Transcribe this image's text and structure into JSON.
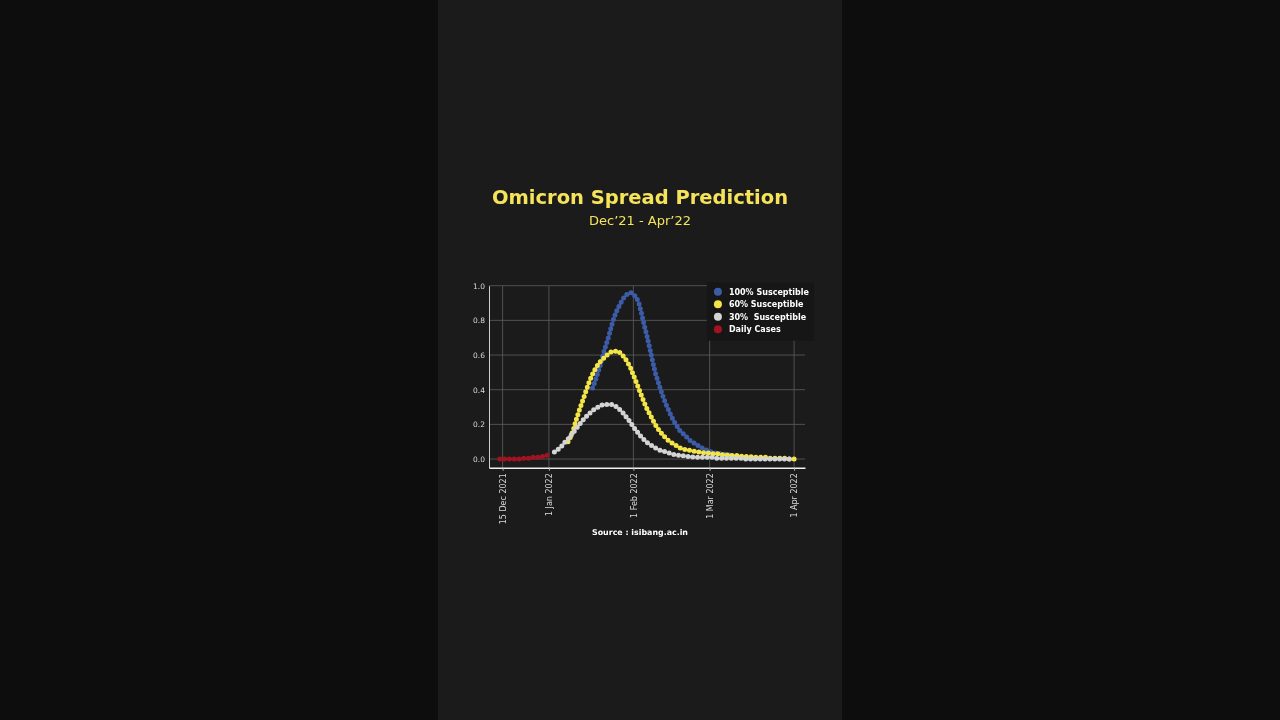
{
  "chart_data": {
    "type": "line",
    "title": "Omicron Spread Prediction",
    "subtitle": "Dec’21 - Apr’22",
    "annotations": [
      "Source : isibang.ac.in"
    ],
    "x": [
      "2021-12-14",
      "2021-12-15",
      "2021-12-16",
      "2021-12-17",
      "2021-12-18",
      "2021-12-19",
      "2021-12-20",
      "2021-12-21",
      "2021-12-22",
      "2021-12-23",
      "2021-12-24",
      "2021-12-25",
      "2021-12-26",
      "2021-12-27",
      "2021-12-28",
      "2021-12-29",
      "2021-12-30",
      "2021-12-31",
      "2022-01-01",
      "2022-01-02",
      "2022-01-03",
      "2022-01-04",
      "2022-01-05",
      "2022-01-06",
      "2022-01-07",
      "2022-01-08",
      "2022-01-09",
      "2022-01-10",
      "2022-01-11",
      "2022-01-12",
      "2022-01-13",
      "2022-01-14",
      "2022-01-15",
      "2022-01-16",
      "2022-01-17",
      "2022-01-18",
      "2022-01-19",
      "2022-01-20",
      "2022-01-21",
      "2022-01-22",
      "2022-01-23",
      "2022-01-24",
      "2022-01-25",
      "2022-01-26",
      "2022-01-27",
      "2022-01-28",
      "2022-01-29",
      "2022-01-30",
      "2022-01-31",
      "2022-02-01",
      "2022-02-02",
      "2022-02-03",
      "2022-02-04",
      "2022-02-05",
      "2022-02-06",
      "2022-02-07",
      "2022-02-08",
      "2022-02-09",
      "2022-02-10",
      "2022-02-11",
      "2022-02-12",
      "2022-02-13",
      "2022-02-14",
      "2022-02-15",
      "2022-02-16",
      "2022-02-17",
      "2022-02-18",
      "2022-02-19",
      "2022-02-20",
      "2022-02-21",
      "2022-02-22",
      "2022-02-23",
      "2022-02-24",
      "2022-02-25",
      "2022-02-26",
      "2022-02-27",
      "2022-02-28",
      "2022-03-01",
      "2022-03-02",
      "2022-03-03",
      "2022-03-04",
      "2022-03-05",
      "2022-03-06",
      "2022-03-07",
      "2022-03-08",
      "2022-03-09",
      "2022-03-10",
      "2022-03-11",
      "2022-03-12",
      "2022-03-13",
      "2022-03-14",
      "2022-03-15",
      "2022-03-16",
      "2022-03-17",
      "2022-03-18",
      "2022-03-19",
      "2022-03-20",
      "2022-03-21",
      "2022-03-22",
      "2022-03-23",
      "2022-03-24",
      "2022-03-25",
      "2022-03-26",
      "2022-03-27",
      "2022-03-28",
      "2022-03-29",
      "2022-03-30",
      "2022-03-31",
      "2022-04-01"
    ],
    "series": [
      {
        "name": "100% Susceptible",
        "color": "#3d5ca8",
        "values": [
          null,
          null,
          null,
          null,
          null,
          null,
          null,
          null,
          null,
          null,
          null,
          null,
          null,
          null,
          null,
          null,
          null,
          null,
          null,
          null,
          null,
          null,
          null,
          null,
          null,
          null,
          null,
          null,
          null,
          null,
          null,
          null,
          null,
          null,
          0.41,
          0.45,
          0.5,
          0.55,
          0.61,
          0.66,
          0.71,
          0.77,
          0.82,
          0.86,
          0.89,
          0.92,
          0.94,
          0.955,
          0.96,
          0.95,
          0.935,
          0.9,
          0.84,
          0.77,
          0.71,
          0.64,
          0.57,
          0.5,
          0.45,
          0.4,
          0.355,
          0.315,
          0.28,
          0.245,
          0.215,
          0.19,
          0.165,
          0.15,
          0.135,
          0.12,
          0.105,
          0.095,
          0.085,
          0.075,
          0.065,
          0.06,
          0.05,
          0.045,
          0.04,
          0.035,
          0.035,
          0.03,
          0.03,
          0.025,
          0.025,
          0.02,
          0.02,
          null,
          null,
          null,
          null,
          null,
          null,
          null,
          null,
          null,
          null,
          null,
          null,
          null,
          null,
          null,
          null,
          null,
          null,
          null,
          null,
          null,
          null
        ]
      },
      {
        "name": "60% Susceptible",
        "color": "#f3e447",
        "values": [
          null,
          null,
          null,
          null,
          null,
          null,
          null,
          null,
          null,
          null,
          null,
          null,
          null,
          null,
          null,
          null,
          null,
          null,
          null,
          null,
          null,
          null,
          null,
          null,
          null,
          0.1,
          0.13,
          0.17,
          0.225,
          0.275,
          0.32,
          0.365,
          0.41,
          0.455,
          0.49,
          0.52,
          0.545,
          0.565,
          0.58,
          0.595,
          0.61,
          0.62,
          0.62,
          0.625,
          0.615,
          0.6,
          0.58,
          0.555,
          0.525,
          0.485,
          0.445,
          0.405,
          0.365,
          0.325,
          0.29,
          0.26,
          0.23,
          0.2,
          0.175,
          0.155,
          0.135,
          0.12,
          0.105,
          0.095,
          0.085,
          0.075,
          0.065,
          0.06,
          0.055,
          0.05,
          0.05,
          0.045,
          0.045,
          0.04,
          0.04,
          0.035,
          0.035,
          0.035,
          0.03,
          0.03,
          0.03,
          0.025,
          0.025,
          0.025,
          0.02,
          0.02,
          0.02,
          0.02,
          0.02,
          0.015,
          0.015,
          0.015,
          0.015,
          0.01,
          0.01,
          0.01,
          0.01,
          0.01,
          0.01,
          0.005,
          0.005,
          0.005,
          0.005,
          0.005,
          0.005,
          0.005,
          0,
          0,
          0
        ]
      },
      {
        "name": "30%  Susceptible",
        "color": "#d4d4d4",
        "values": [
          null,
          null,
          null,
          null,
          null,
          null,
          null,
          null,
          null,
          null,
          null,
          null,
          null,
          null,
          null,
          null,
          null,
          null,
          null,
          null,
          0.04,
          0.05,
          0.065,
          0.08,
          0.1,
          0.115,
          0.135,
          0.155,
          0.175,
          0.195,
          0.215,
          0.235,
          0.25,
          0.265,
          0.28,
          0.29,
          0.3,
          0.31,
          0.315,
          0.315,
          0.315,
          0.315,
          0.31,
          0.3,
          0.285,
          0.27,
          0.25,
          0.23,
          0.21,
          0.185,
          0.165,
          0.145,
          0.125,
          0.11,
          0.095,
          0.085,
          0.075,
          0.065,
          0.055,
          0.05,
          0.045,
          0.04,
          0.035,
          0.03,
          0.025,
          0.025,
          0.02,
          0.02,
          0.015,
          0.015,
          0.015,
          0.01,
          0.01,
          0.01,
          0.01,
          0.01,
          0.01,
          0.01,
          0.01,
          0.005,
          0.005,
          0.005,
          0.005,
          0.005,
          0.005,
          0.005,
          0.005,
          0.005,
          0.005,
          0.005,
          0,
          0,
          0,
          0,
          0,
          0,
          0,
          0,
          0,
          0,
          0,
          0,
          0,
          0,
          0,
          0,
          0,
          0,
          0
        ]
      },
      {
        "name": "Daily Cases",
        "color": "#a3131f",
        "values": [
          0,
          0,
          0,
          0,
          0,
          0,
          0,
          0,
          0.005,
          0.005,
          0.005,
          0.005,
          0.01,
          0.01,
          0.01,
          0.015,
          0.015,
          0.02,
          0.025,
          0.03,
          null,
          null,
          null,
          null,
          null,
          null,
          null,
          null,
          null,
          null,
          null,
          null,
          null,
          null,
          null,
          null,
          null,
          null,
          null,
          null,
          null,
          null,
          null,
          null,
          null,
          null,
          null,
          null,
          null,
          null,
          null,
          null,
          null,
          null,
          null,
          null,
          null,
          null,
          null,
          null,
          null,
          null,
          null,
          null,
          null,
          null,
          null,
          null,
          null,
          null,
          null,
          null,
          null,
          null,
          null,
          null,
          null,
          null,
          null,
          null,
          null,
          null,
          null,
          null,
          null,
          null,
          null,
          null,
          null,
          null,
          null,
          null,
          null,
          null,
          null,
          null,
          null,
          null,
          null,
          null,
          null,
          null,
          null,
          null,
          null,
          null,
          null,
          null,
          null
        ]
      }
    ],
    "xlim": [
      "2021-12-10",
      "2022-04-05"
    ],
    "xticks": [
      {
        "value": "2021-12-15",
        "label": "15 Dec 2021"
      },
      {
        "value": "2022-01-01",
        "label": "1 Jan 2022"
      },
      {
        "value": "2022-02-01",
        "label": "1 Feb 2022"
      },
      {
        "value": "2022-03-01",
        "label": "1 Mar 2022"
      },
      {
        "value": "2022-04-01",
        "label": "1 Apr 2022"
      }
    ],
    "ylim": [
      -0.05,
      1.0
    ],
    "yticks": [
      {
        "value": 0,
        "label": "0.0"
      },
      0.2,
      0.4,
      0.6,
      0.8,
      {
        "value": 1,
        "label": "1.0"
      }
    ],
    "grid": true,
    "legend": "top right",
    "line_style": "dotted"
  }
}
